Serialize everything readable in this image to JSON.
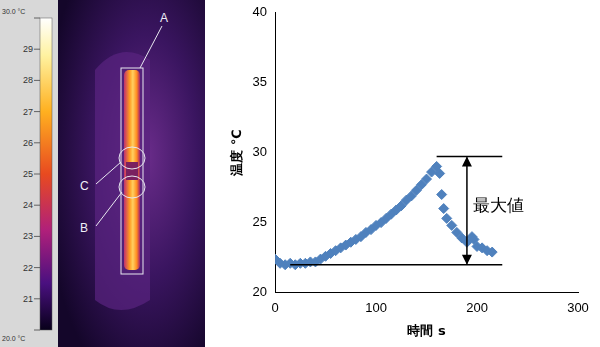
{
  "thermal_image": {
    "labels": [
      "A",
      "B",
      "C"
    ],
    "colorbar": {
      "range": [
        20,
        30
      ],
      "ticks": [
        {
          "value": 20,
          "label": "20.0 °C"
        },
        21,
        22,
        23,
        24,
        25,
        26,
        27,
        28,
        29,
        {
          "value": 30,
          "label": "30.0 °C"
        }
      ]
    }
  },
  "chart_data": {
    "type": "scatter",
    "x_label": "時間 s",
    "y_label": "温度 ℃",
    "x": [
      0,
      5,
      10,
      15,
      20,
      25,
      30,
      35,
      40,
      45,
      50,
      55,
      60,
      65,
      70,
      75,
      80,
      85,
      90,
      95,
      100,
      105,
      110,
      115,
      120,
      125,
      130,
      135,
      140,
      145,
      150,
      155,
      160,
      163,
      165,
      167,
      170,
      175,
      180,
      185,
      190,
      195,
      197,
      200,
      205,
      210,
      215
    ],
    "values": [
      22.4,
      22.1,
      22.0,
      22.1,
      22.0,
      22.1,
      22.1,
      22.2,
      22.2,
      22.4,
      22.6,
      22.8,
      23.0,
      23.2,
      23.4,
      23.6,
      23.8,
      24.0,
      24.3,
      24.5,
      24.8,
      25.0,
      25.3,
      25.6,
      25.9,
      26.2,
      26.6,
      26.9,
      27.3,
      27.7,
      28.1,
      28.6,
      29.0,
      28.5,
      27.0,
      26.0,
      25.3,
      24.8,
      24.3,
      23.9,
      23.6,
      24.0,
      23.8,
      23.3,
      23.2,
      23.0,
      22.9
    ],
    "color": "#4f81bd",
    "marker": "diamond",
    "xlim": [
      0,
      300
    ],
    "xticks": [
      0,
      100,
      200,
      300
    ],
    "ylim": [
      20,
      40
    ],
    "yticks": [
      20,
      25,
      30,
      35,
      40
    ],
    "grid": false,
    "annotation": {
      "text": "最大値",
      "x": 190,
      "ymin": 22,
      "ymax": 29.7,
      "xmin_low": 15,
      "xmin_high": 160,
      "xmax": 225
    }
  }
}
